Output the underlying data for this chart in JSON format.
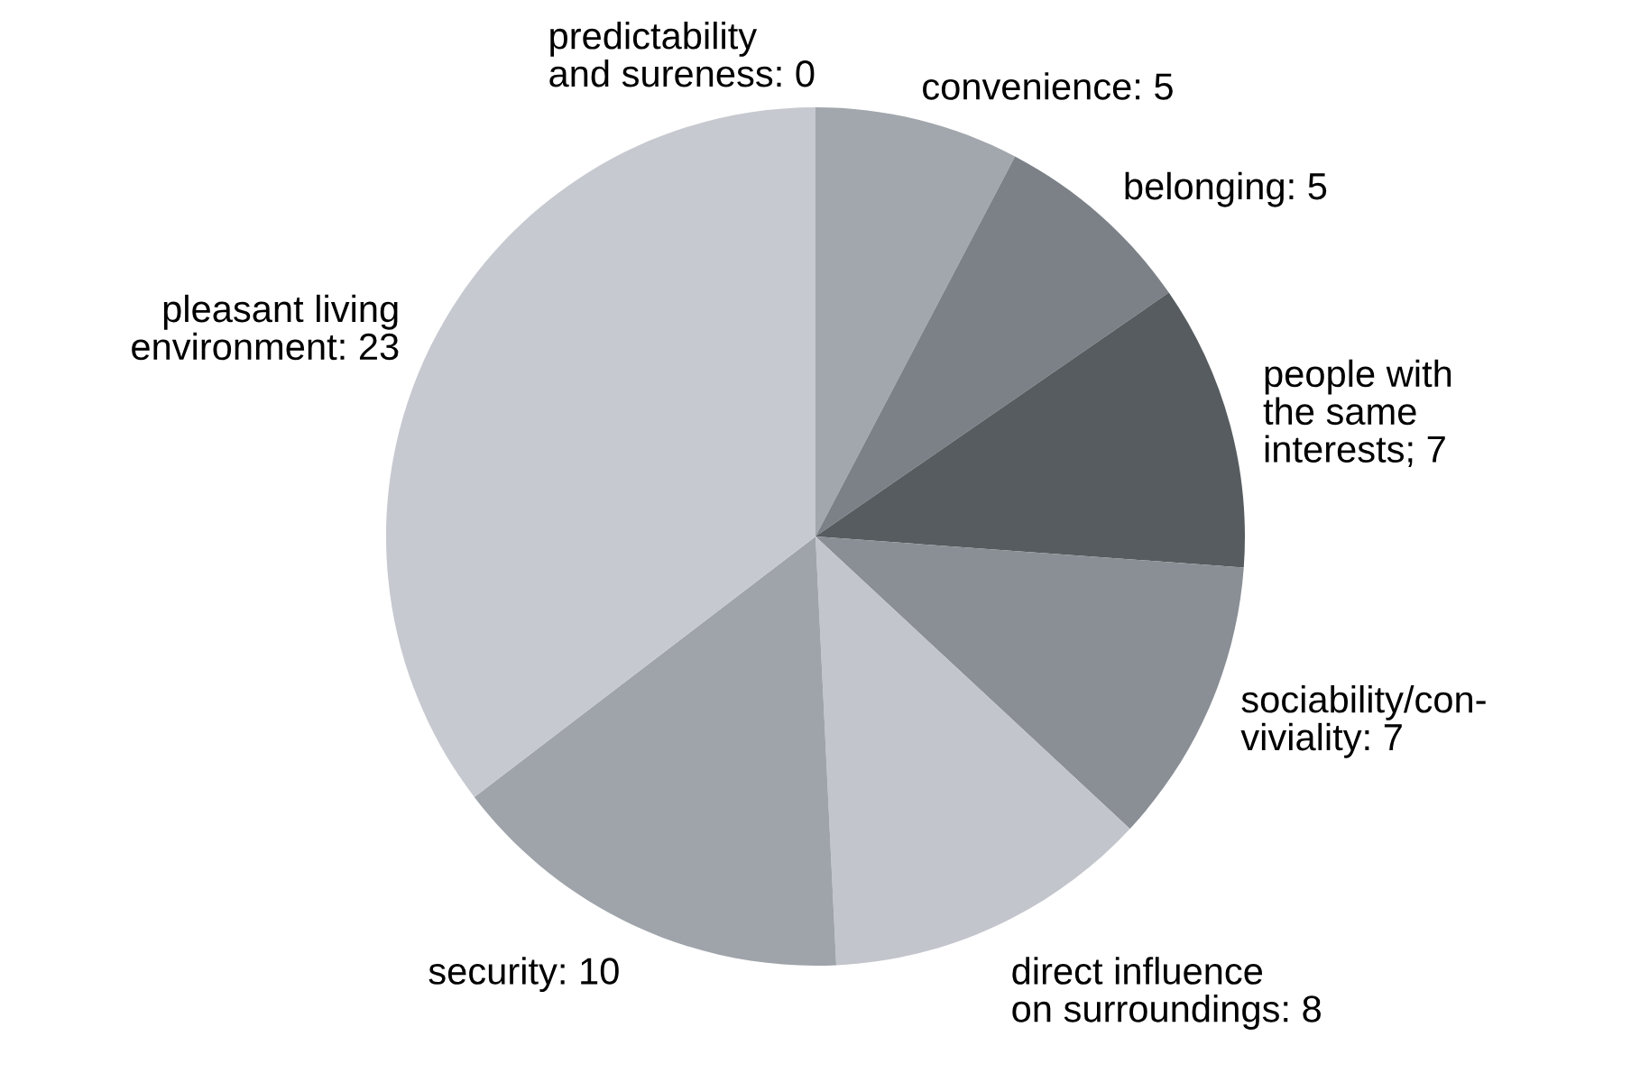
{
  "chart_data": {
    "type": "pie",
    "categories": [
      "predictability\nand sureness: 0",
      "convenience: 5",
      "belonging: 5",
      "people with\nthe same\ninterests; 7",
      "sociability/con-\nviviality: 7",
      "direct influence\non surroundings: 8",
      "security: 10",
      "pleasant living\nenvironment: 23"
    ],
    "values": [
      0,
      5,
      5,
      7,
      7,
      8,
      10,
      23
    ],
    "colors": [
      "#b0b4ba",
      "#a2a7ad",
      "#7c8188",
      "#565c5f",
      "#8a8f96",
      "#c2c5cb",
      "#9fa4aa",
      "#c6c9cf"
    ],
    "legend": false
  }
}
